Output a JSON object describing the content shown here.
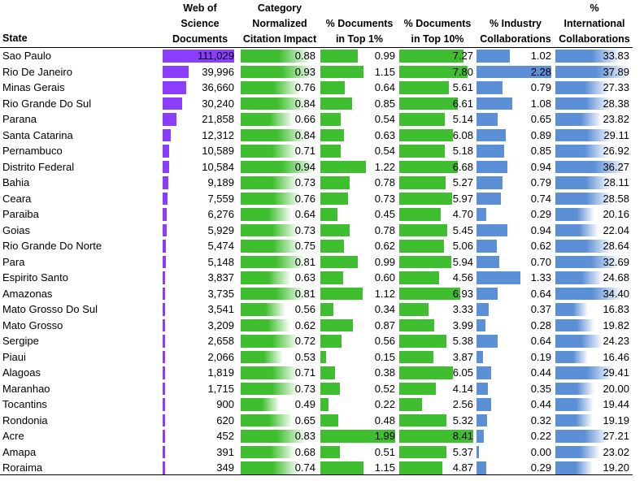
{
  "headers": {
    "state": "State",
    "docs": [
      "Web of",
      "Science",
      "Documents"
    ],
    "cnci": [
      "Category",
      "Normalized",
      "Citation Impact"
    ],
    "top1": [
      "% Documents",
      "in Top 1%"
    ],
    "top10": [
      "% Documents",
      "in Top 10%"
    ],
    "industry": [
      "% Industry",
      "Collaborations"
    ],
    "intl": [
      "%",
      "International",
      "Collaborations"
    ]
  },
  "colors": {
    "docs": "#8b3dff",
    "cnci": "#3fbf2f",
    "top1": "#3fbf2f",
    "top10": "#3fbf2f",
    "industry": "#5b8fd6",
    "intl": "#5b8fd6"
  },
  "chart_data": {
    "type": "table",
    "columns": [
      "State",
      "Web of Science Documents",
      "Category Normalized Citation Impact",
      "% Documents in Top 1%",
      "% Documents in Top 10%",
      "% Industry Collaborations",
      "% International Collaborations"
    ],
    "rows": [
      {
        "state": "Sao Paulo",
        "docs": "111,029",
        "cnci": "0.88",
        "top1": "0.99",
        "top10": "7.27",
        "industry": "1.02",
        "intl": "33.83"
      },
      {
        "state": "Rio De Janeiro",
        "docs": "39,996",
        "cnci": "0.93",
        "top1": "1.15",
        "top10": "7.80",
        "industry": "2.28",
        "intl": "37.89"
      },
      {
        "state": "Minas Gerais",
        "docs": "36,660",
        "cnci": "0.76",
        "top1": "0.64",
        "top10": "5.61",
        "industry": "0.79",
        "intl": "27.33"
      },
      {
        "state": "Rio Grande Do Sul",
        "docs": "30,240",
        "cnci": "0.84",
        "top1": "0.85",
        "top10": "6.61",
        "industry": "1.08",
        "intl": "28.38"
      },
      {
        "state": "Parana",
        "docs": "21,858",
        "cnci": "0.66",
        "top1": "0.54",
        "top10": "5.14",
        "industry": "0.65",
        "intl": "23.82"
      },
      {
        "state": "Santa Catarina",
        "docs": "12,312",
        "cnci": "0.84",
        "top1": "0.63",
        "top10": "6.08",
        "industry": "0.89",
        "intl": "29.11"
      },
      {
        "state": "Pernambuco",
        "docs": "10,589",
        "cnci": "0.71",
        "top1": "0.54",
        "top10": "5.18",
        "industry": "0.85",
        "intl": "26.92"
      },
      {
        "state": "Distrito Federal",
        "docs": "10,584",
        "cnci": "0.94",
        "top1": "1.22",
        "top10": "6.68",
        "industry": "0.94",
        "intl": "36.27"
      },
      {
        "state": "Bahia",
        "docs": "9,189",
        "cnci": "0.73",
        "top1": "0.78",
        "top10": "5.27",
        "industry": "0.79",
        "intl": "28.11"
      },
      {
        "state": "Ceara",
        "docs": "7,559",
        "cnci": "0.76",
        "top1": "0.73",
        "top10": "5.97",
        "industry": "0.74",
        "intl": "28.58"
      },
      {
        "state": "Paraiba",
        "docs": "6,276",
        "cnci": "0.64",
        "top1": "0.45",
        "top10": "4.70",
        "industry": "0.29",
        "intl": "20.16"
      },
      {
        "state": "Goias",
        "docs": "5,929",
        "cnci": "0.73",
        "top1": "0.78",
        "top10": "5.45",
        "industry": "0.94",
        "intl": "22.04"
      },
      {
        "state": "Rio Grande Do Norte",
        "docs": "5,474",
        "cnci": "0.75",
        "top1": "0.62",
        "top10": "5.06",
        "industry": "0.62",
        "intl": "28.64"
      },
      {
        "state": "Para",
        "docs": "5,148",
        "cnci": "0.81",
        "top1": "0.99",
        "top10": "5.94",
        "industry": "0.70",
        "intl": "32.69"
      },
      {
        "state": "Espirito Santo",
        "docs": "3,837",
        "cnci": "0.63",
        "top1": "0.60",
        "top10": "4.56",
        "industry": "1.33",
        "intl": "24.68"
      },
      {
        "state": "Amazonas",
        "docs": "3,735",
        "cnci": "0.81",
        "top1": "1.12",
        "top10": "6.93",
        "industry": "0.64",
        "intl": "34.40"
      },
      {
        "state": "Mato Grosso Do Sul",
        "docs": "3,541",
        "cnci": "0.56",
        "top1": "0.34",
        "top10": "3.33",
        "industry": "0.37",
        "intl": "16.83"
      },
      {
        "state": "Mato Grosso",
        "docs": "3,209",
        "cnci": "0.62",
        "top1": "0.87",
        "top10": "3.99",
        "industry": "0.28",
        "intl": "19.82"
      },
      {
        "state": "Sergipe",
        "docs": "2,658",
        "cnci": "0.72",
        "top1": "0.56",
        "top10": "5.38",
        "industry": "0.64",
        "intl": "24.23"
      },
      {
        "state": "Piaui",
        "docs": "2,066",
        "cnci": "0.53",
        "top1": "0.15",
        "top10": "3.87",
        "industry": "0.19",
        "intl": "16.46"
      },
      {
        "state": "Alagoas",
        "docs": "1,819",
        "cnci": "0.71",
        "top1": "0.38",
        "top10": "6.05",
        "industry": "0.44",
        "intl": "29.41"
      },
      {
        "state": "Maranhao",
        "docs": "1,715",
        "cnci": "0.73",
        "top1": "0.52",
        "top10": "4.14",
        "industry": "0.35",
        "intl": "20.00"
      },
      {
        "state": "Tocantins",
        "docs": "900",
        "cnci": "0.49",
        "top1": "0.22",
        "top10": "2.56",
        "industry": "0.44",
        "intl": "19.44"
      },
      {
        "state": "Rondonia",
        "docs": "620",
        "cnci": "0.65",
        "top1": "0.48",
        "top10": "5.32",
        "industry": "0.32",
        "intl": "19.19"
      },
      {
        "state": "Acre",
        "docs": "452",
        "cnci": "0.83",
        "top1": "1.99",
        "top10": "8.41",
        "industry": "0.22",
        "intl": "27.21"
      },
      {
        "state": "Amapa",
        "docs": "391",
        "cnci": "0.68",
        "top1": "0.51",
        "top10": "5.37",
        "industry": "0.00",
        "intl": "23.02"
      },
      {
        "state": "Roraima",
        "docs": "349",
        "cnci": "0.74",
        "top1": "1.15",
        "top10": "4.87",
        "industry": "0.29",
        "intl": "19.20"
      }
    ]
  }
}
